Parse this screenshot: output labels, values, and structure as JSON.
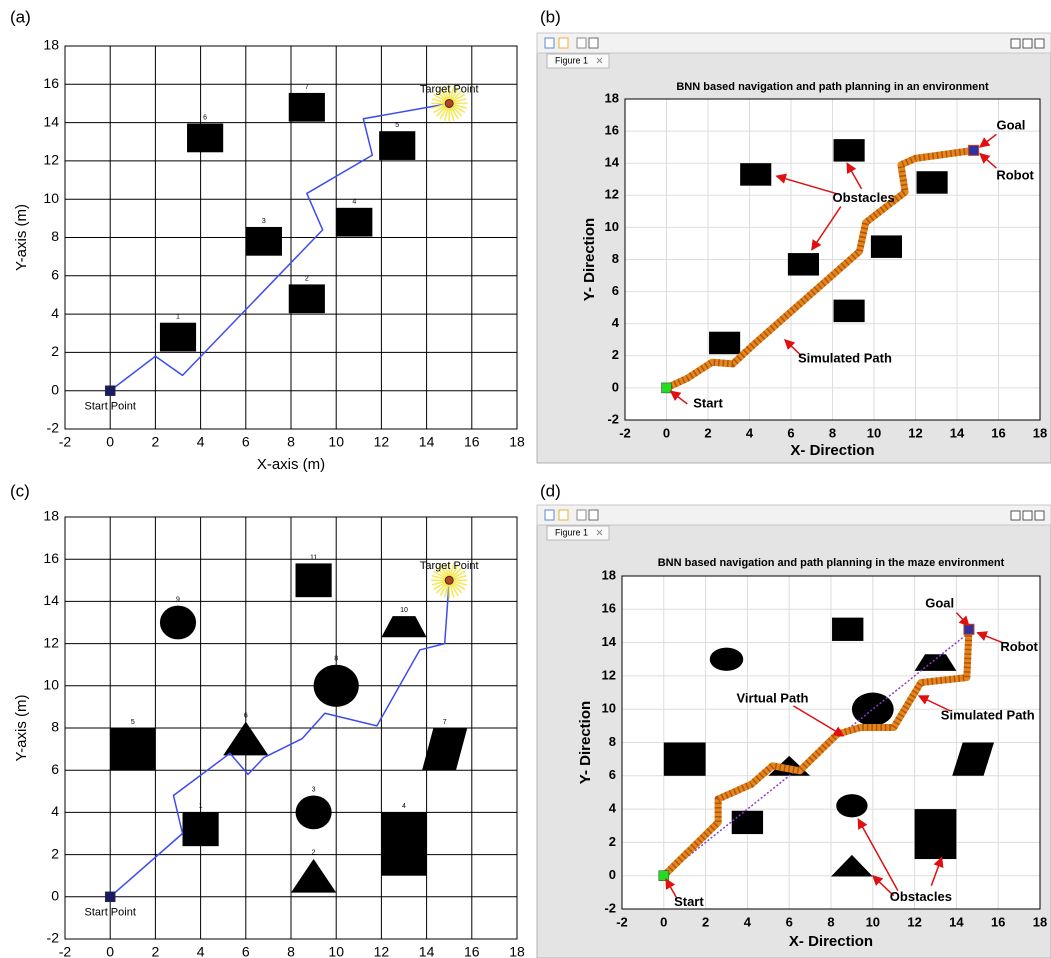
{
  "chart_data": [
    {
      "type": "path",
      "panel": "(a)",
      "xlabel": "X-axis (m)",
      "ylabel": "Y-axis (m)",
      "xlim": [
        -2,
        18
      ],
      "ylim": [
        -2,
        18
      ],
      "xticks": [
        -2,
        0,
        2,
        4,
        6,
        8,
        10,
        12,
        14,
        16,
        18
      ],
      "yticks": [
        -2,
        0,
        2,
        4,
        6,
        8,
        10,
        12,
        14,
        16,
        18
      ],
      "grid": true,
      "grid_color": "#000000",
      "obstacles": [
        {
          "label": "1",
          "shape": "square",
          "x": 3,
          "y": 2.8,
          "w": 1.6,
          "h": 1.5
        },
        {
          "label": "2",
          "shape": "square",
          "x": 8.7,
          "y": 4.8,
          "w": 1.6,
          "h": 1.5
        },
        {
          "label": "3",
          "shape": "square",
          "x": 6.8,
          "y": 7.8,
          "w": 1.6,
          "h": 1.5
        },
        {
          "label": "4",
          "shape": "square",
          "x": 10.8,
          "y": 8.8,
          "w": 1.6,
          "h": 1.5
        },
        {
          "label": "5",
          "shape": "square",
          "x": 12.7,
          "y": 12.8,
          "w": 1.6,
          "h": 1.5
        },
        {
          "label": "6",
          "shape": "square",
          "x": 4.2,
          "y": 13.2,
          "w": 1.6,
          "h": 1.5
        },
        {
          "label": "7",
          "shape": "square",
          "x": 8.7,
          "y": 14.8,
          "w": 1.6,
          "h": 1.5
        }
      ],
      "series": [
        {
          "style": "line",
          "color": "#3c4cf0",
          "x": [
            0,
            2,
            3.2,
            9.4,
            8.7,
            11.6,
            11.2,
            15
          ],
          "y": [
            0,
            1.8,
            0.8,
            8.4,
            10.3,
            12.3,
            14.2,
            15
          ]
        }
      ],
      "start": {
        "label": "Start Point",
        "x": 0,
        "y": 0,
        "color": "#1a1a60"
      },
      "goal": {
        "label": "Target Point",
        "x": 15,
        "y": 15,
        "color": "#f5e850"
      }
    },
    {
      "type": "path",
      "panel": "(b)",
      "window": true,
      "tab": "Figure 1",
      "title": "BNN based navigation and path planning in an environment",
      "xlabel": "X- Direction",
      "ylabel": "Y- Direction",
      "xlim": [
        -2,
        18
      ],
      "ylim": [
        -2,
        18
      ],
      "xticks": [
        -2,
        0,
        2,
        4,
        6,
        8,
        10,
        12,
        14,
        16,
        18
      ],
      "yticks": [
        -2,
        0,
        2,
        4,
        6,
        8,
        10,
        12,
        14,
        16,
        18
      ],
      "grid": true,
      "grid_color": "#dddddd",
      "obstacles": [
        {
          "shape": "square",
          "x": 2.8,
          "y": 2.8,
          "w": 1.5,
          "h": 1.4
        },
        {
          "shape": "square",
          "x": 8.8,
          "y": 4.8,
          "w": 1.5,
          "h": 1.4
        },
        {
          "shape": "square",
          "x": 6.6,
          "y": 7.7,
          "w": 1.5,
          "h": 1.4
        },
        {
          "shape": "square",
          "x": 10.6,
          "y": 8.8,
          "w": 1.5,
          "h": 1.4
        },
        {
          "shape": "square",
          "x": 12.8,
          "y": 12.8,
          "w": 1.5,
          "h": 1.4
        },
        {
          "shape": "square",
          "x": 4.3,
          "y": 13.3,
          "w": 1.5,
          "h": 1.4
        },
        {
          "shape": "square",
          "x": 8.8,
          "y": 14.8,
          "w": 1.5,
          "h": 1.4
        }
      ],
      "series": [
        {
          "style": "dots",
          "color": "#e8841a",
          "x": [
            0,
            1,
            2.2,
            3.2,
            4.2,
            9.3,
            9.6,
            11.5,
            11.3,
            12,
            14.8
          ],
          "y": [
            0,
            0.6,
            1.6,
            1.5,
            2.7,
            8.5,
            10.3,
            12.2,
            13.9,
            14.3,
            14.8
          ]
        }
      ],
      "start": {
        "x": 0,
        "y": 0,
        "color": "#22dd22"
      },
      "goal": {
        "x": 14.8,
        "y": 14.8,
        "color": "#3030a0"
      },
      "annotations": [
        "Goal",
        "Robot",
        "Obstacles",
        "Simulated Path",
        "Start"
      ]
    },
    {
      "type": "path",
      "panel": "(c)",
      "ylabel": "Y-axis (m)",
      "xlim": [
        -2,
        18
      ],
      "ylim": [
        -2,
        18
      ],
      "xticks": [
        -2,
        0,
        2,
        4,
        6,
        8,
        10,
        12,
        14,
        16,
        18
      ],
      "yticks": [
        -2,
        0,
        2,
        4,
        6,
        8,
        10,
        12,
        14,
        16,
        18
      ],
      "grid": true,
      "grid_color": "#000000",
      "obstacles": [
        {
          "label": "1",
          "shape": "square",
          "x": 4,
          "y": 3.2,
          "w": 1.6,
          "h": 1.6
        },
        {
          "label": "2",
          "shape": "triangle",
          "x": 9,
          "y": 1,
          "w": 2,
          "h": 1.6
        },
        {
          "label": "3",
          "shape": "circle",
          "x": 9,
          "y": 4,
          "w": 1.6,
          "h": 1.6
        },
        {
          "label": "4",
          "shape": "square",
          "x": 13,
          "y": 2.5,
          "w": 2,
          "h": 3
        },
        {
          "label": "5",
          "shape": "square",
          "x": 1,
          "y": 7,
          "w": 2,
          "h": 2
        },
        {
          "label": "6",
          "shape": "triangle",
          "x": 6,
          "y": 7.5,
          "w": 2,
          "h": 1.6
        },
        {
          "label": "7",
          "shape": "parallelogram",
          "x": 14.8,
          "y": 7,
          "w": 2,
          "h": 2
        },
        {
          "label": "8",
          "shape": "circle",
          "x": 10,
          "y": 10,
          "w": 2,
          "h": 2
        },
        {
          "label": "9",
          "shape": "circle",
          "x": 3,
          "y": 13,
          "w": 1.6,
          "h": 1.6
        },
        {
          "label": "10",
          "shape": "trapezoid",
          "x": 13,
          "y": 12.8,
          "w": 2,
          "h": 1
        },
        {
          "label": "11",
          "shape": "square",
          "x": 9,
          "y": 15,
          "w": 1.6,
          "h": 1.6
        }
      ],
      "series": [
        {
          "style": "line",
          "color": "#3c4cf0",
          "x": [
            0,
            3.2,
            2.8,
            5.3,
            6.1,
            6.8,
            8.5,
            9.5,
            11.8,
            13.7,
            14.8,
            15
          ],
          "y": [
            0,
            3,
            4.8,
            6.8,
            5.8,
            6.6,
            7.5,
            8.7,
            8.1,
            11.7,
            12,
            15
          ]
        }
      ],
      "start": {
        "label": "Start Point",
        "x": 0,
        "y": 0,
        "color": "#1a1a60"
      },
      "goal": {
        "label": "Target Point",
        "x": 15,
        "y": 15,
        "color": "#f5e850"
      }
    },
    {
      "type": "path",
      "panel": "(d)",
      "window": true,
      "tab": "Figure 1",
      "title": "BNN based navigation and path planning in the maze environment",
      "xlabel": "X- Direction",
      "ylabel": "Y- Direction",
      "xlim": [
        -2,
        18
      ],
      "ylim": [
        -2,
        18
      ],
      "xticks": [
        -2,
        0,
        2,
        4,
        6,
        8,
        10,
        12,
        14,
        16,
        18
      ],
      "yticks": [
        -2,
        0,
        2,
        4,
        6,
        8,
        10,
        12,
        14,
        16,
        18
      ],
      "grid": true,
      "grid_color": "#dddddd",
      "obstacles": [
        {
          "shape": "square",
          "x": 4,
          "y": 3.2,
          "w": 1.5,
          "h": 1.4
        },
        {
          "shape": "triangle",
          "x": 9,
          "y": 0.6,
          "w": 2,
          "h": 1.3
        },
        {
          "shape": "circle",
          "x": 9,
          "y": 4.2,
          "w": 1.5,
          "h": 1.4
        },
        {
          "shape": "square",
          "x": 13,
          "y": 2.5,
          "w": 2,
          "h": 3
        },
        {
          "shape": "square",
          "x": 1,
          "y": 7,
          "w": 2,
          "h": 2
        },
        {
          "shape": "triangle",
          "x": 6,
          "y": 6.6,
          "w": 2,
          "h": 1.2
        },
        {
          "shape": "parallelogram",
          "x": 14.8,
          "y": 7,
          "w": 2,
          "h": 2
        },
        {
          "shape": "circle",
          "x": 10,
          "y": 10,
          "w": 2,
          "h": 2
        },
        {
          "shape": "circle",
          "x": 3,
          "y": 13,
          "w": 1.6,
          "h": 1.4
        },
        {
          "shape": "trapezoid",
          "x": 13,
          "y": 12.8,
          "w": 2,
          "h": 1
        },
        {
          "shape": "square",
          "x": 8.8,
          "y": 14.8,
          "w": 1.5,
          "h": 1.4
        }
      ],
      "series": [
        {
          "style": "dotted",
          "color": "#8a3ad0",
          "x": [
            0,
            14.8
          ],
          "y": [
            0,
            14.8
          ]
        },
        {
          "style": "dots",
          "color": "#e8841a",
          "x": [
            0,
            2.6,
            2.6,
            4.2,
            5.2,
            6.5,
            8.3,
            9.4,
            11,
            12.3,
            14.5,
            14.6
          ],
          "y": [
            0,
            3.2,
            4.6,
            5.5,
            6.6,
            6.3,
            8.5,
            8.9,
            8.9,
            11.6,
            11.9,
            14.8
          ]
        }
      ],
      "start": {
        "x": 0,
        "y": 0,
        "color": "#22dd22"
      },
      "goal": {
        "x": 14.6,
        "y": 14.8,
        "color": "#3030a0"
      },
      "annotations": [
        "Goal",
        "Robot",
        "Virtual Path",
        "Simulated Path",
        "Obstacles",
        "Start"
      ]
    }
  ]
}
